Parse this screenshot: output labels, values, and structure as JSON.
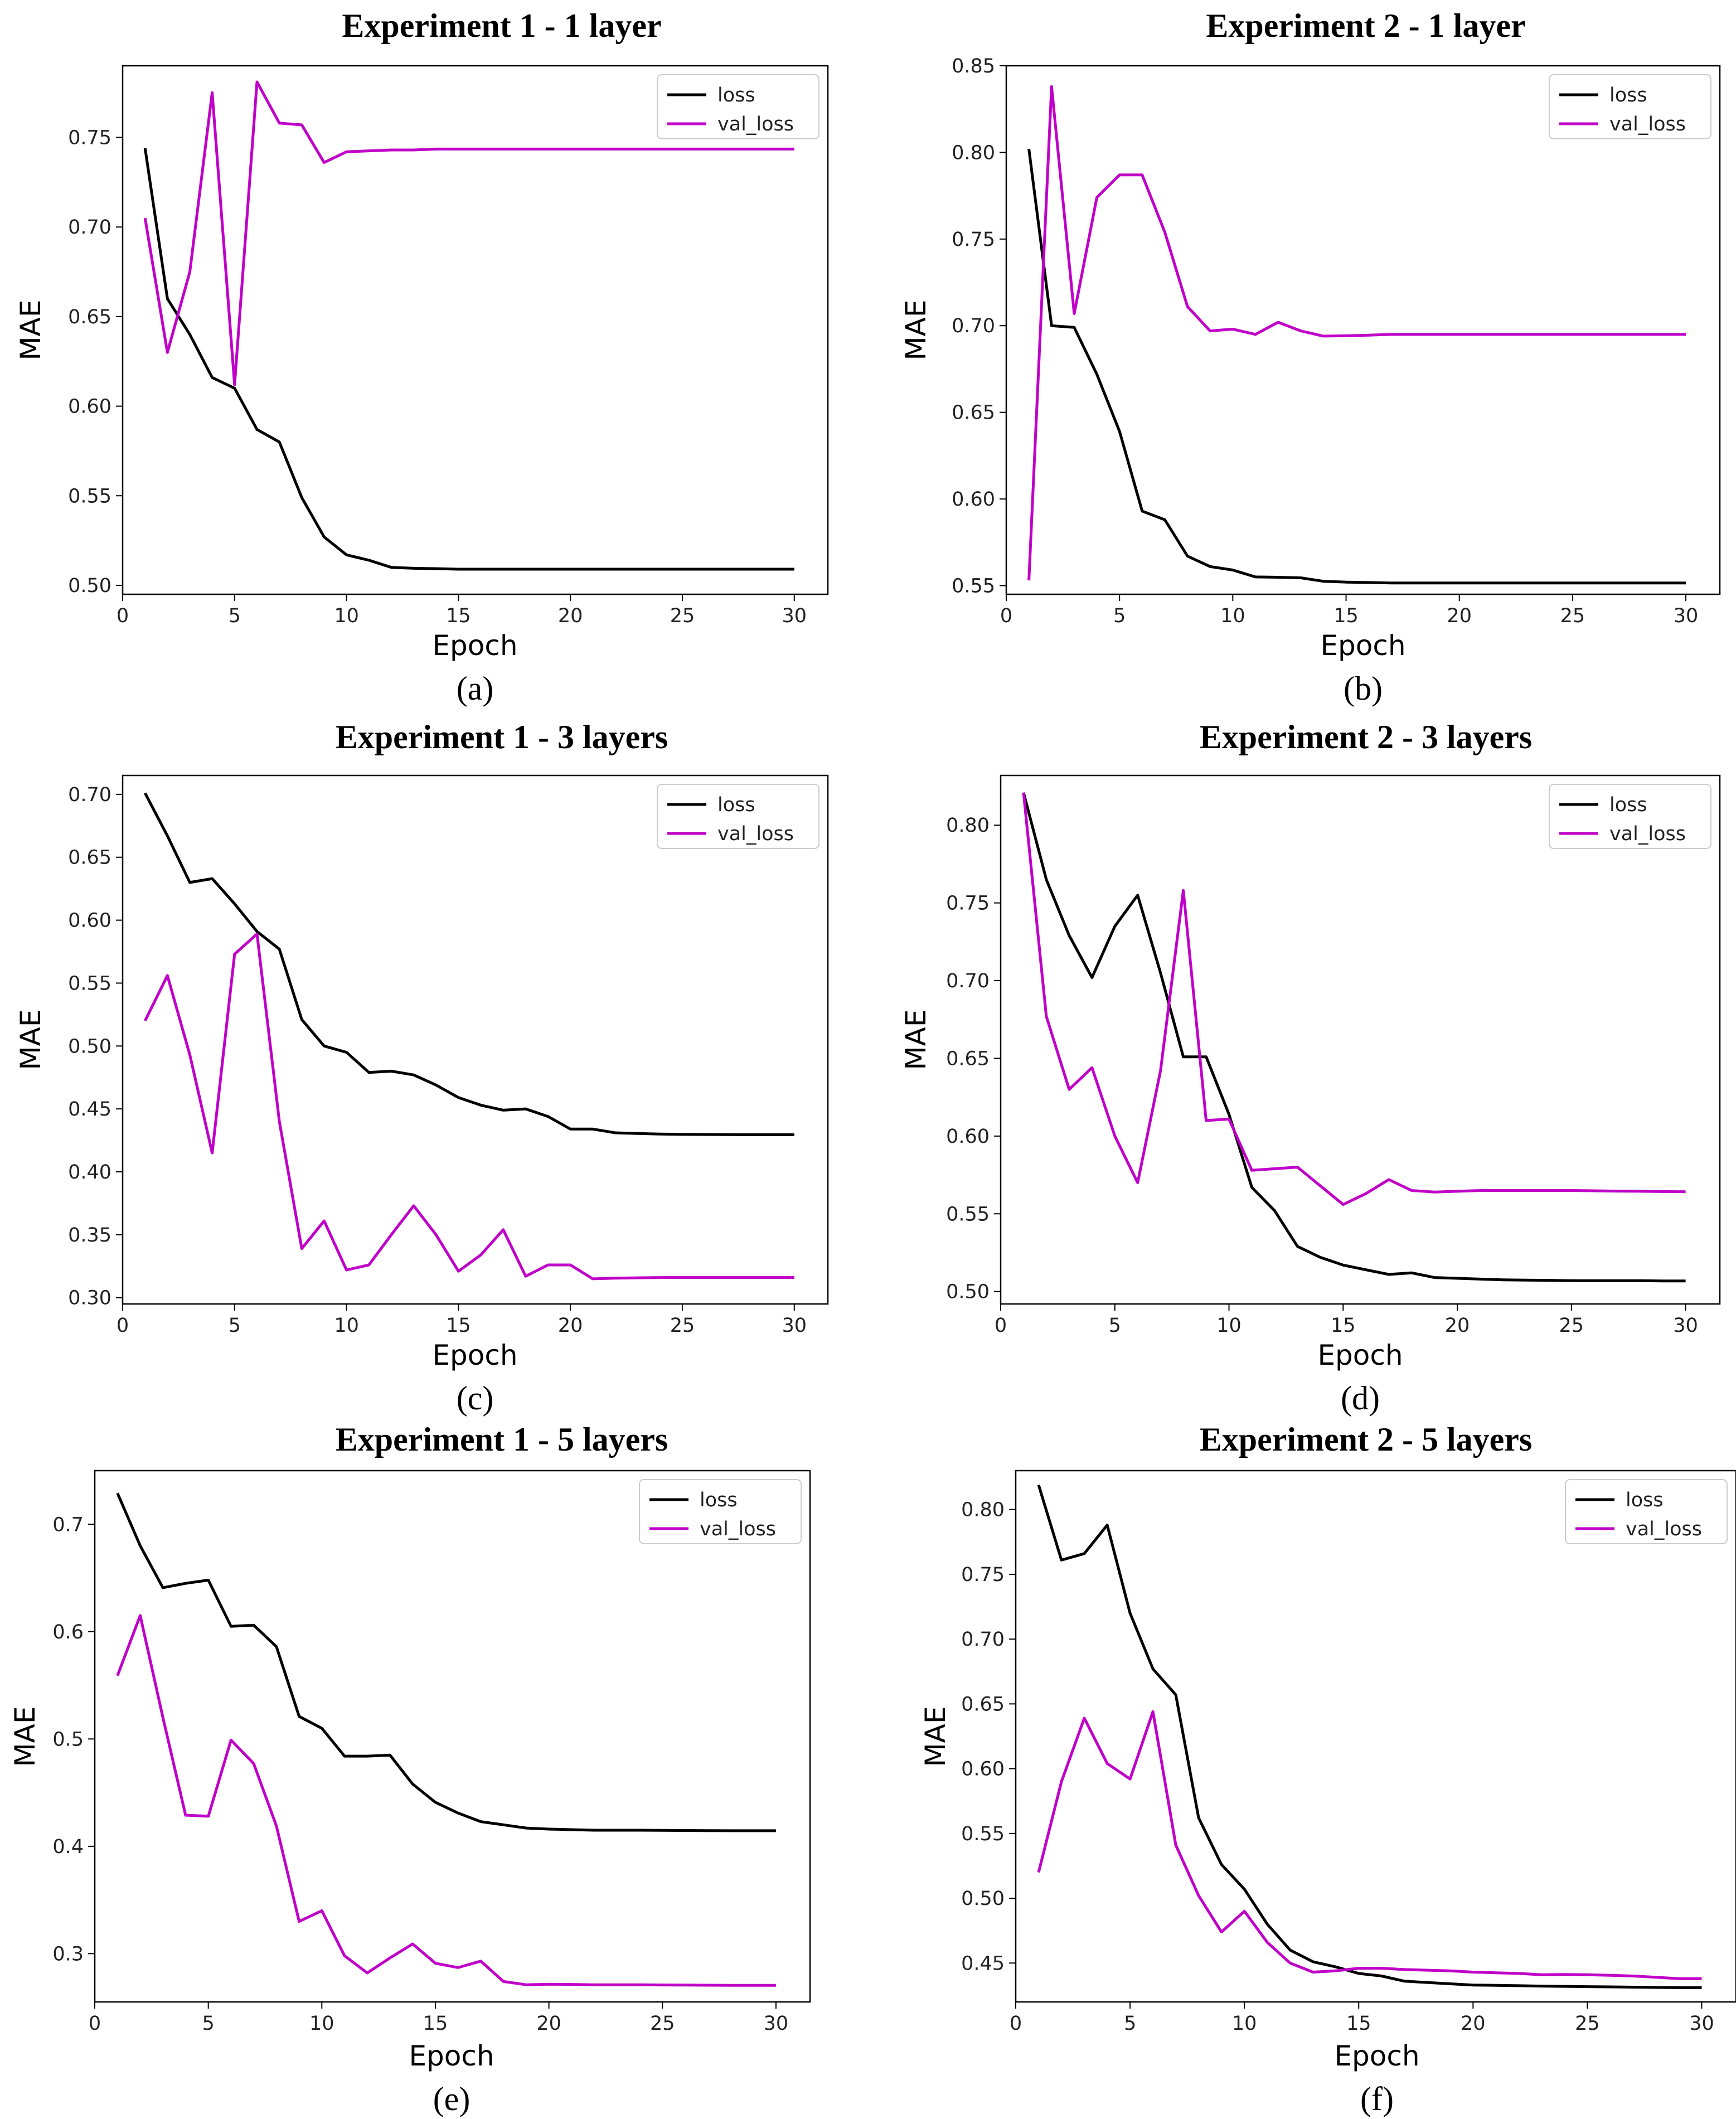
{
  "figure": {
    "colors": {
      "loss": "#000000",
      "val_loss": "#c000c8"
    }
  },
  "chart_data": [
    {
      "type": "line",
      "title": "Experiment 1 - 1 layer",
      "caption": "(a)",
      "xlabel": "Epoch",
      "ylabel": "MAE",
      "xlim": [
        0,
        31.5
      ],
      "ylim": [
        0.495,
        0.79
      ],
      "xticks": [
        0,
        5,
        10,
        15,
        20,
        25,
        30
      ],
      "yticks": [
        0.5,
        0.55,
        0.6,
        0.65,
        0.7,
        0.75
      ],
      "ytick_labels": [
        "0.50",
        "0.55",
        "0.60",
        "0.65",
        "0.70",
        "0.75"
      ],
      "legend": "top-right",
      "x": [
        1,
        2,
        3,
        4,
        5,
        6,
        7,
        8,
        9,
        10,
        11,
        12,
        13,
        14,
        15,
        16,
        17,
        18,
        19,
        20,
        21,
        22,
        23,
        24,
        25,
        26,
        27,
        28,
        29,
        30
      ],
      "series": [
        {
          "name": "loss",
          "values": [
            0.744,
            0.66,
            0.64,
            0.616,
            0.61,
            0.587,
            0.58,
            0.549,
            0.527,
            0.517,
            0.514,
            0.51,
            0.5095,
            0.5093,
            0.509,
            0.509,
            0.509,
            0.509,
            0.509,
            0.509,
            0.509,
            0.509,
            0.509,
            0.509,
            0.509,
            0.509,
            0.509,
            0.509,
            0.509,
            0.509
          ]
        },
        {
          "name": "val_loss",
          "values": [
            0.705,
            0.63,
            0.675,
            0.775,
            0.612,
            0.781,
            0.758,
            0.757,
            0.736,
            0.742,
            0.7425,
            0.743,
            0.743,
            0.7435,
            0.7435,
            0.7435,
            0.7435,
            0.7435,
            0.7435,
            0.7435,
            0.7435,
            0.7435,
            0.7435,
            0.7435,
            0.7435,
            0.7435,
            0.7435,
            0.7435,
            0.7435,
            0.7435
          ]
        }
      ]
    },
    {
      "type": "line",
      "title": "Experiment 2 - 1 layer",
      "caption": "(b)",
      "xlabel": "Epoch",
      "ylabel": "MAE",
      "xlim": [
        0,
        31.5
      ],
      "ylim": [
        0.545,
        0.85
      ],
      "xticks": [
        0,
        5,
        10,
        15,
        20,
        25,
        30
      ],
      "yticks": [
        0.55,
        0.6,
        0.65,
        0.7,
        0.75,
        0.8,
        0.85
      ],
      "ytick_labels": [
        "0.55",
        "0.60",
        "0.65",
        "0.70",
        "0.75",
        "0.80",
        "0.85"
      ],
      "legend": "top-right",
      "x": [
        1,
        2,
        3,
        4,
        5,
        6,
        7,
        8,
        9,
        10,
        11,
        12,
        13,
        14,
        15,
        16,
        17,
        18,
        19,
        20,
        21,
        22,
        23,
        24,
        25,
        26,
        27,
        28,
        29,
        30
      ],
      "series": [
        {
          "name": "loss",
          "values": [
            0.802,
            0.7,
            0.699,
            0.672,
            0.639,
            0.593,
            0.588,
            0.567,
            0.561,
            0.559,
            0.555,
            0.5548,
            0.5545,
            0.5525,
            0.552,
            0.5518,
            0.5515,
            0.5515,
            0.5515,
            0.5515,
            0.5515,
            0.5515,
            0.5515,
            0.5515,
            0.5515,
            0.5515,
            0.5515,
            0.5515,
            0.5515,
            0.5515
          ]
        },
        {
          "name": "val_loss",
          "values": [
            0.553,
            0.838,
            0.707,
            0.774,
            0.787,
            0.787,
            0.754,
            0.711,
            0.697,
            0.698,
            0.695,
            0.702,
            0.697,
            0.694,
            0.6942,
            0.6945,
            0.695,
            0.695,
            0.695,
            0.695,
            0.695,
            0.695,
            0.695,
            0.695,
            0.695,
            0.695,
            0.695,
            0.695,
            0.695,
            0.695
          ]
        }
      ]
    },
    {
      "type": "line",
      "title": "Experiment 1 - 3 layers",
      "caption": "(c)",
      "xlabel": "Epoch",
      "ylabel": "MAE",
      "xlim": [
        0,
        31.5
      ],
      "ylim": [
        0.295,
        0.715
      ],
      "xticks": [
        0,
        5,
        10,
        15,
        20,
        25,
        30
      ],
      "yticks": [
        0.3,
        0.35,
        0.4,
        0.45,
        0.5,
        0.55,
        0.6,
        0.65,
        0.7
      ],
      "ytick_labels": [
        "0.30",
        "0.35",
        "0.40",
        "0.45",
        "0.50",
        "0.55",
        "0.60",
        "0.65",
        "0.70"
      ],
      "legend": "top-right",
      "x": [
        1,
        2,
        3,
        4,
        5,
        6,
        7,
        8,
        9,
        10,
        11,
        12,
        13,
        14,
        15,
        16,
        17,
        18,
        19,
        20,
        21,
        22,
        23,
        24,
        25,
        26,
        27,
        28,
        29,
        30
      ],
      "series": [
        {
          "name": "loss",
          "values": [
            0.701,
            0.667,
            0.63,
            0.633,
            0.613,
            0.591,
            0.577,
            0.521,
            0.5,
            0.495,
            0.479,
            0.48,
            0.477,
            0.469,
            0.459,
            0.453,
            0.449,
            0.45,
            0.444,
            0.434,
            0.434,
            0.431,
            0.4305,
            0.43,
            0.4298,
            0.4297,
            0.4296,
            0.4295,
            0.4295,
            0.4295
          ]
        },
        {
          "name": "val_loss",
          "values": [
            0.52,
            0.556,
            0.493,
            0.415,
            0.573,
            0.589,
            0.44,
            0.339,
            0.361,
            0.322,
            0.326,
            0.35,
            0.373,
            0.35,
            0.321,
            0.334,
            0.354,
            0.317,
            0.326,
            0.326,
            0.315,
            0.3155,
            0.3158,
            0.316,
            0.316,
            0.316,
            0.316,
            0.316,
            0.316,
            0.316
          ]
        }
      ]
    },
    {
      "type": "line",
      "title": "Experiment 2 - 3 layers",
      "caption": "(d)",
      "xlabel": "Epoch",
      "ylabel": "MAE",
      "xlim": [
        0,
        31.5
      ],
      "ylim": [
        0.492,
        0.832
      ],
      "xticks": [
        0,
        5,
        10,
        15,
        20,
        25,
        30
      ],
      "yticks": [
        0.5,
        0.55,
        0.6,
        0.65,
        0.7,
        0.75,
        0.8
      ],
      "ytick_labels": [
        "0.50",
        "0.55",
        "0.60",
        "0.65",
        "0.70",
        "0.75",
        "0.80"
      ],
      "legend": "top-right",
      "x": [
        1,
        2,
        3,
        4,
        5,
        6,
        7,
        8,
        9,
        10,
        11,
        12,
        13,
        14,
        15,
        16,
        17,
        18,
        19,
        20,
        21,
        22,
        23,
        24,
        25,
        26,
        27,
        28,
        29,
        30
      ],
      "series": [
        {
          "name": "loss",
          "values": [
            0.821,
            0.765,
            0.729,
            0.702,
            0.735,
            0.755,
            0.705,
            0.651,
            0.651,
            0.614,
            0.567,
            0.552,
            0.529,
            0.522,
            0.517,
            0.514,
            0.511,
            0.512,
            0.509,
            0.5085,
            0.508,
            0.5075,
            0.5073,
            0.5072,
            0.507,
            0.507,
            0.507,
            0.507,
            0.5068,
            0.5068
          ]
        },
        {
          "name": "val_loss",
          "values": [
            0.821,
            0.677,
            0.63,
            0.644,
            0.6,
            0.57,
            0.642,
            0.758,
            0.61,
            0.611,
            0.578,
            0.579,
            0.58,
            0.568,
            0.556,
            0.563,
            0.572,
            0.565,
            0.564,
            0.5645,
            0.565,
            0.565,
            0.565,
            0.565,
            0.565,
            0.5648,
            0.5646,
            0.5645,
            0.5643,
            0.5642
          ]
        }
      ]
    },
    {
      "type": "line",
      "title": "Experiment 1 - 5 layers",
      "caption": "(e)",
      "xlabel": "Epoch",
      "ylabel": "MAE",
      "xlim": [
        0,
        31.5
      ],
      "ylim": [
        0.255,
        0.75
      ],
      "xticks": [
        0,
        5,
        10,
        15,
        20,
        25,
        30
      ],
      "yticks": [
        0.3,
        0.4,
        0.5,
        0.6,
        0.7
      ],
      "ytick_labels": [
        "0.3",
        "0.4",
        "0.5",
        "0.6",
        "0.7"
      ],
      "legend": "top-right",
      "x": [
        1,
        2,
        3,
        4,
        5,
        6,
        7,
        8,
        9,
        10,
        11,
        12,
        13,
        14,
        15,
        16,
        17,
        18,
        19,
        20,
        21,
        22,
        23,
        24,
        25,
        26,
        27,
        28,
        29,
        30
      ],
      "series": [
        {
          "name": "loss",
          "values": [
            0.729,
            0.68,
            0.641,
            0.645,
            0.648,
            0.605,
            0.606,
            0.586,
            0.521,
            0.51,
            0.484,
            0.484,
            0.485,
            0.458,
            0.441,
            0.431,
            0.423,
            0.42,
            0.417,
            0.416,
            0.4155,
            0.415,
            0.415,
            0.415,
            0.4148,
            0.4147,
            0.4146,
            0.4145,
            0.4145,
            0.4145
          ]
        },
        {
          "name": "val_loss",
          "values": [
            0.559,
            0.615,
            0.52,
            0.429,
            0.428,
            0.499,
            0.477,
            0.419,
            0.33,
            0.34,
            0.298,
            0.282,
            0.296,
            0.309,
            0.291,
            0.287,
            0.293,
            0.274,
            0.271,
            0.2715,
            0.2713,
            0.271,
            0.271,
            0.271,
            0.2708,
            0.2707,
            0.2706,
            0.2705,
            0.2705,
            0.2705
          ]
        }
      ]
    },
    {
      "type": "line",
      "title": "Experiment 2 - 5 layers",
      "caption": "(f)",
      "xlabel": "Epoch",
      "ylabel": "MAE",
      "xlim": [
        0,
        31.5
      ],
      "ylim": [
        0.42,
        0.83
      ],
      "xticks": [
        0,
        5,
        10,
        15,
        20,
        25,
        30
      ],
      "yticks": [
        0.45,
        0.5,
        0.55,
        0.6,
        0.65,
        0.7,
        0.75,
        0.8
      ],
      "ytick_labels": [
        "0.45",
        "0.50",
        "0.55",
        "0.60",
        "0.65",
        "0.70",
        "0.75",
        "0.80"
      ],
      "legend": "top-right",
      "x": [
        1,
        2,
        3,
        4,
        5,
        6,
        7,
        8,
        9,
        10,
        11,
        12,
        13,
        14,
        15,
        16,
        17,
        18,
        19,
        20,
        21,
        22,
        23,
        24,
        25,
        26,
        27,
        28,
        29,
        30
      ],
      "series": [
        {
          "name": "loss",
          "values": [
            0.819,
            0.761,
            0.766,
            0.788,
            0.72,
            0.677,
            0.657,
            0.562,
            0.526,
            0.507,
            0.48,
            0.46,
            0.451,
            0.447,
            0.442,
            0.44,
            0.436,
            0.435,
            0.434,
            0.433,
            0.4328,
            0.4325,
            0.4322,
            0.432,
            0.4318,
            0.4316,
            0.4314,
            0.4312,
            0.431,
            0.431
          ]
        },
        {
          "name": "val_loss",
          "values": [
            0.52,
            0.59,
            0.639,
            0.604,
            0.592,
            0.644,
            0.541,
            0.502,
            0.474,
            0.49,
            0.466,
            0.45,
            0.443,
            0.444,
            0.446,
            0.446,
            0.445,
            0.4445,
            0.444,
            0.443,
            0.4425,
            0.442,
            0.441,
            0.4412,
            0.441,
            0.4405,
            0.44,
            0.439,
            0.438,
            0.438
          ]
        }
      ]
    }
  ]
}
